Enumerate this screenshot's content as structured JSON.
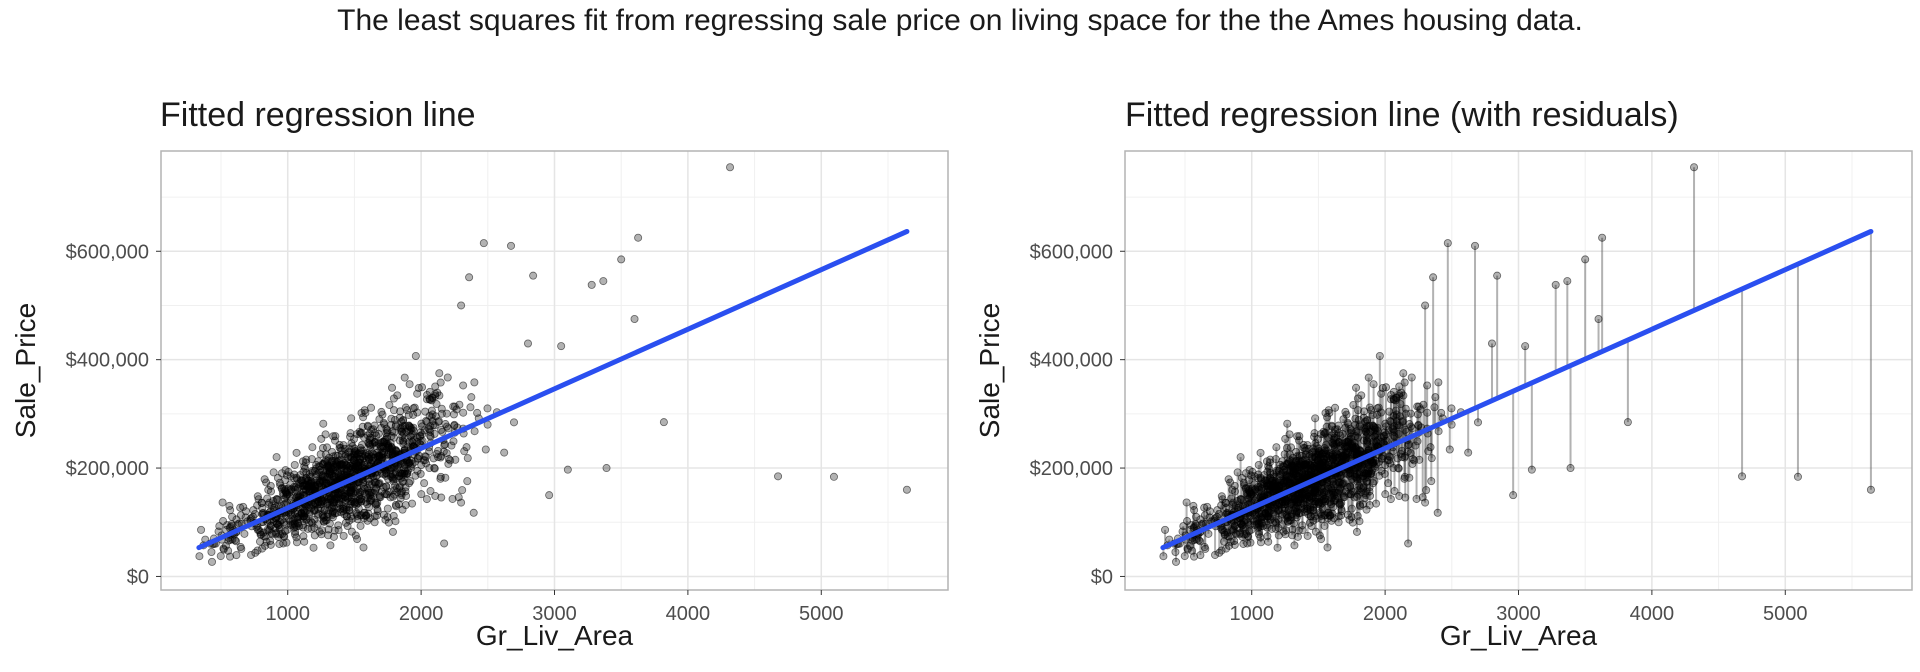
{
  "figure_title": "The least squares fit from regressing sale price on living space for the the Ames housing data.",
  "colors": {
    "points": "#000000",
    "fit_line": "#2A4FF0",
    "residuals": "#555555",
    "grid": "#e5e5e5",
    "panel_border": "#b3b3b3"
  },
  "chart_data": [
    {
      "type": "scatter",
      "title": "Fitted regression line",
      "xlabel": "Gr_Liv_Area",
      "ylabel": "Sale_Price",
      "xlim": [
        50,
        5950
      ],
      "ylim": [
        -25000,
        785000
      ],
      "x_ticks": [
        1000,
        2000,
        3000,
        4000,
        5000
      ],
      "y_ticks": [
        0,
        200000,
        400000,
        600000
      ],
      "y_tick_labels": [
        "$0",
        "$200,000",
        "$400,000",
        "$600,000"
      ],
      "grid": true,
      "fit_line": {
        "slope": 109.9,
        "intercept": 16500,
        "x_range": [
          334,
          5642
        ]
      },
      "show_residuals": false,
      "outliers": [
        [
          4316,
          755000
        ],
        [
          3627,
          625000
        ],
        [
          2470,
          615000
        ],
        [
          2674,
          610000
        ],
        [
          3500,
          585000
        ],
        [
          4676,
          184750
        ],
        [
          5095,
          183850
        ],
        [
          5642,
          160000
        ],
        [
          3820,
          284700
        ],
        [
          3390,
          200000
        ],
        [
          3100,
          197000
        ],
        [
          2960,
          150000
        ],
        [
          2840,
          555000
        ],
        [
          2360,
          552000
        ],
        [
          2300,
          500000
        ],
        [
          3279,
          538000
        ],
        [
          3366,
          545000
        ],
        [
          3050,
          425000
        ],
        [
          3600,
          475000
        ]
      ]
    },
    {
      "type": "scatter",
      "title": "Fitted regression line (with residuals)",
      "xlabel": "Gr_Liv_Area",
      "ylabel": "Sale_Price",
      "xlim": [
        50,
        5950
      ],
      "ylim": [
        -25000,
        785000
      ],
      "x_ticks": [
        1000,
        2000,
        3000,
        4000,
        5000
      ],
      "y_ticks": [
        0,
        200000,
        400000,
        600000
      ],
      "y_tick_labels": [
        "$0",
        "$200,000",
        "$400,000",
        "$600,000"
      ],
      "grid": true,
      "fit_line": {
        "slope": 109.9,
        "intercept": 16500,
        "x_range": [
          334,
          5642
        ]
      },
      "show_residuals": true,
      "outliers": [
        [
          4316,
          755000
        ],
        [
          3627,
          625000
        ],
        [
          2470,
          615000
        ],
        [
          2674,
          610000
        ],
        [
          3500,
          585000
        ],
        [
          4676,
          184750
        ],
        [
          5095,
          183850
        ],
        [
          5642,
          160000
        ],
        [
          3820,
          284700
        ],
        [
          3390,
          200000
        ],
        [
          3100,
          197000
        ],
        [
          2960,
          150000
        ],
        [
          2840,
          555000
        ],
        [
          2360,
          552000
        ],
        [
          2300,
          500000
        ],
        [
          3279,
          538000
        ],
        [
          3366,
          545000
        ],
        [
          3050,
          425000
        ],
        [
          3600,
          475000
        ]
      ]
    }
  ]
}
